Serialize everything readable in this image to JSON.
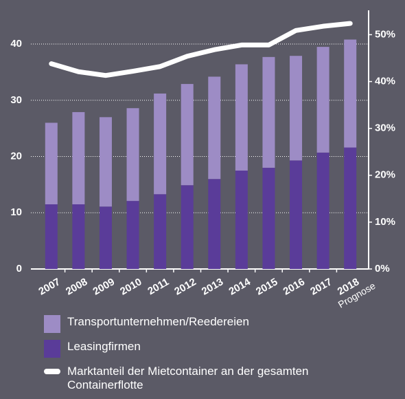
{
  "chart_data": {
    "type": "bar",
    "categories": [
      "2007",
      "2008",
      "2009",
      "2010",
      "2011",
      "2012",
      "2013",
      "2014",
      "2015",
      "2016",
      "2017",
      "2018"
    ],
    "annotation": "Prognose",
    "series": [
      {
        "name": "Transportunternehmen/Reedereien",
        "color": "#9d8cc5",
        "values": [
          14.5,
          16.4,
          15.9,
          16.5,
          17.9,
          18.0,
          18.2,
          18.9,
          19.7,
          18.6,
          18.8,
          19.2
        ]
      },
      {
        "name": "Leasingfirmen",
        "color": "#5a3c99",
        "values": [
          11.5,
          11.5,
          11.1,
          12.1,
          13.3,
          14.9,
          16.0,
          17.5,
          18.0,
          19.3,
          20.7,
          21.6
        ]
      },
      {
        "name": "Marktanteil der Mietcontainer an der gesamten Containerflotte",
        "color": "#ffffff",
        "type": "line",
        "axis": "y2",
        "values": [
          43.8,
          42.1,
          41.3,
          42.2,
          43.2,
          45.4,
          46.8,
          47.8,
          47.8,
          50.9,
          51.8,
          52.4
        ]
      }
    ],
    "ylim": [
      0,
      46
    ],
    "yticks": [
      0,
      10,
      20,
      30,
      40
    ],
    "y2lim": [
      0,
      55.2
    ],
    "y2ticks": [
      {
        "value": 0,
        "label": "0%"
      },
      {
        "value": 10,
        "label": "10%"
      },
      {
        "value": 20,
        "label": "20%"
      },
      {
        "value": 30,
        "label": "30%"
      },
      {
        "value": 40,
        "label": "40%"
      },
      {
        "value": 50,
        "label": "50%"
      }
    ],
    "grid": true,
    "stacked": true
  }
}
